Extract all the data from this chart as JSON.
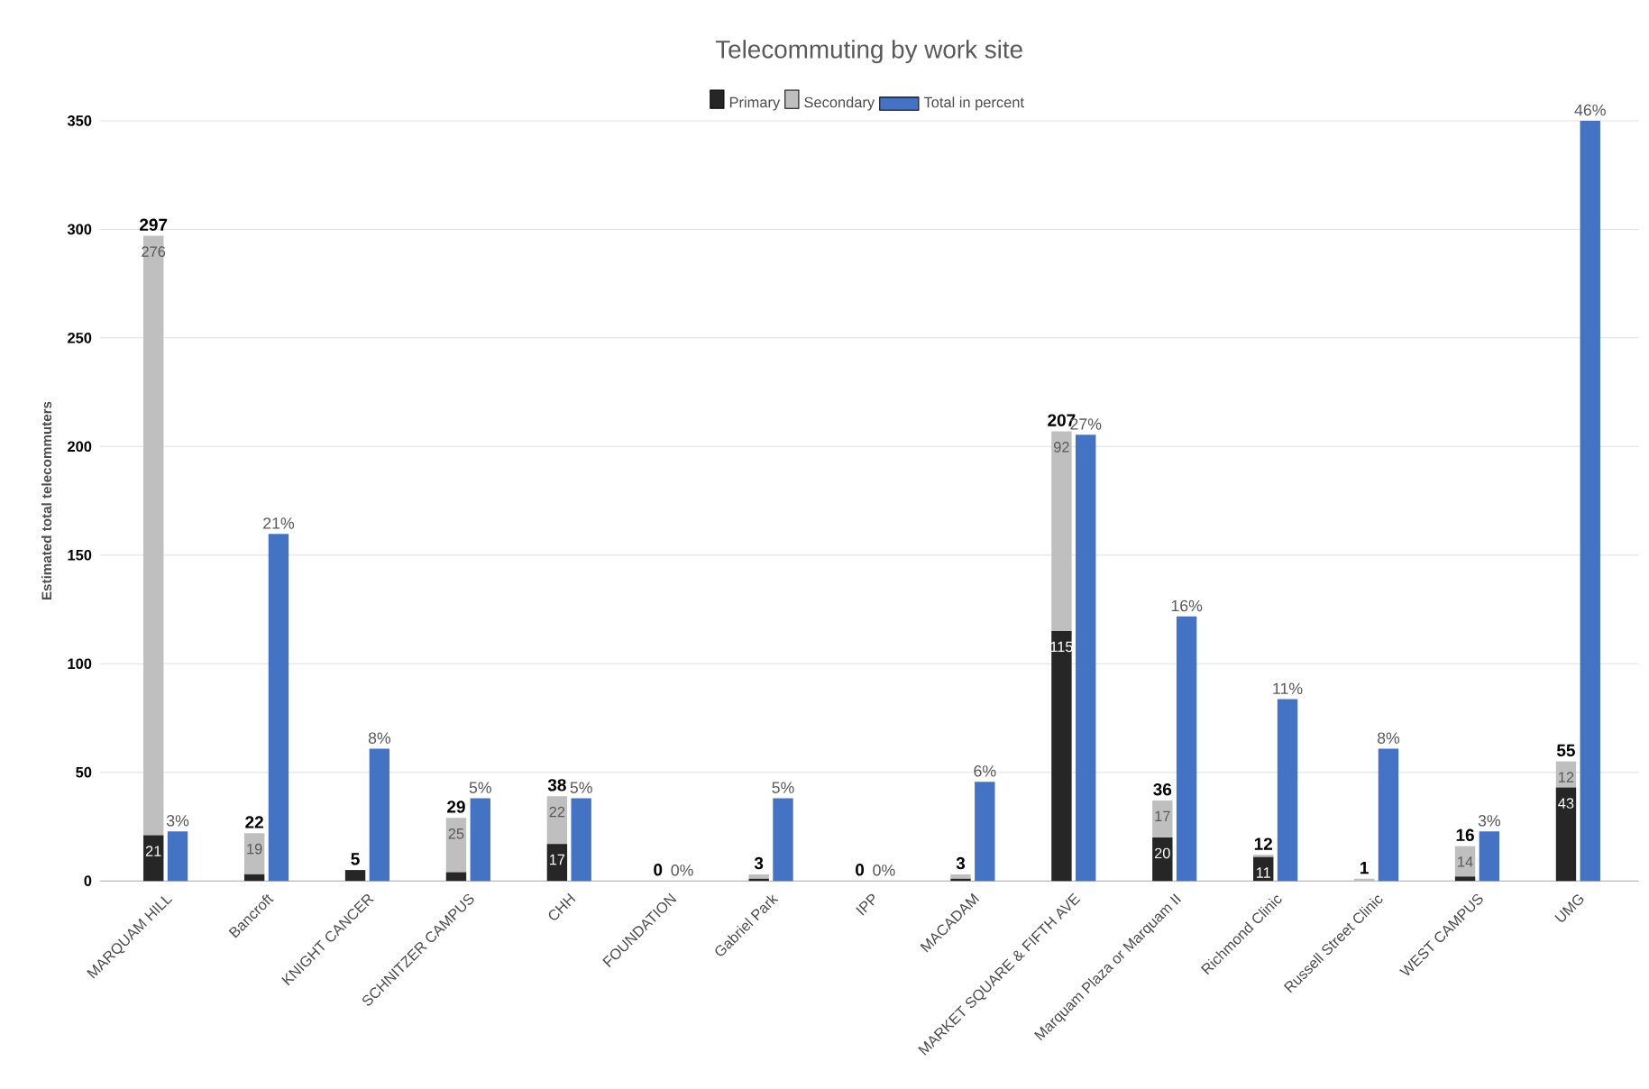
{
  "chart_data": {
    "type": "bar",
    "title": "Telecommuting by work site",
    "ylabel": "Estimated total telecommuters",
    "categories": [
      "MARQUAM HILL",
      "Bancroft",
      "KNIGHT CANCER",
      "SCHNITZER CAMPUS",
      "CHH",
      "FOUNDATION",
      "Gabriel Park",
      "IPP",
      "MACADAM",
      "MARKET SQUARE & FIFTH AVE",
      "Marquam Plaza or Marquam II",
      "Richmond Clinic",
      "Russell Street Clinic",
      "WEST CAMPUS",
      "UMG"
    ],
    "stacked": true,
    "grid": "y",
    "legend": "top",
    "ylim": [
      0,
      350
    ],
    "yticks": [
      0,
      50,
      100,
      150,
      200,
      250,
      300,
      350
    ],
    "series": [
      {
        "name": "Primary",
        "color": "#262626",
        "values": [
          21,
          3,
          5,
          4,
          17,
          0,
          1,
          0,
          1,
          115,
          20,
          11,
          0,
          2,
          43
        ],
        "value_labels": [
          "21",
          null,
          null,
          null,
          "17",
          null,
          null,
          null,
          null,
          "115",
          "20",
          "11",
          null,
          null,
          "43"
        ]
      },
      {
        "name": "Secondary",
        "color": "#bfbfbf",
        "values": [
          276,
          19,
          0,
          25,
          22,
          0,
          2,
          0,
          2,
          92,
          17,
          1,
          1,
          14,
          12
        ],
        "value_labels": [
          "276",
          "19",
          null,
          "25",
          "22",
          null,
          null,
          null,
          null,
          "92",
          "17",
          null,
          null,
          "14",
          "12"
        ]
      },
      {
        "name": "Total in percent",
        "color": "#4472c4",
        "axis": "y2",
        "values": [
          3,
          21,
          8,
          5,
          5,
          0,
          5,
          0,
          6,
          27,
          16,
          11,
          8,
          3,
          46
        ],
        "value_labels": [
          "3%",
          "21%",
          "8%",
          "5%",
          "5%",
          "0%",
          "5%",
          "0%",
          "6%",
          "27%",
          "16%",
          "11%",
          "8%",
          "3%",
          "46%"
        ]
      }
    ],
    "totals": [
      "297",
      "22",
      "5",
      "29",
      "38",
      "0",
      "3",
      "0",
      "3",
      "207",
      "36",
      "12",
      "1",
      "16",
      "55"
    ]
  }
}
